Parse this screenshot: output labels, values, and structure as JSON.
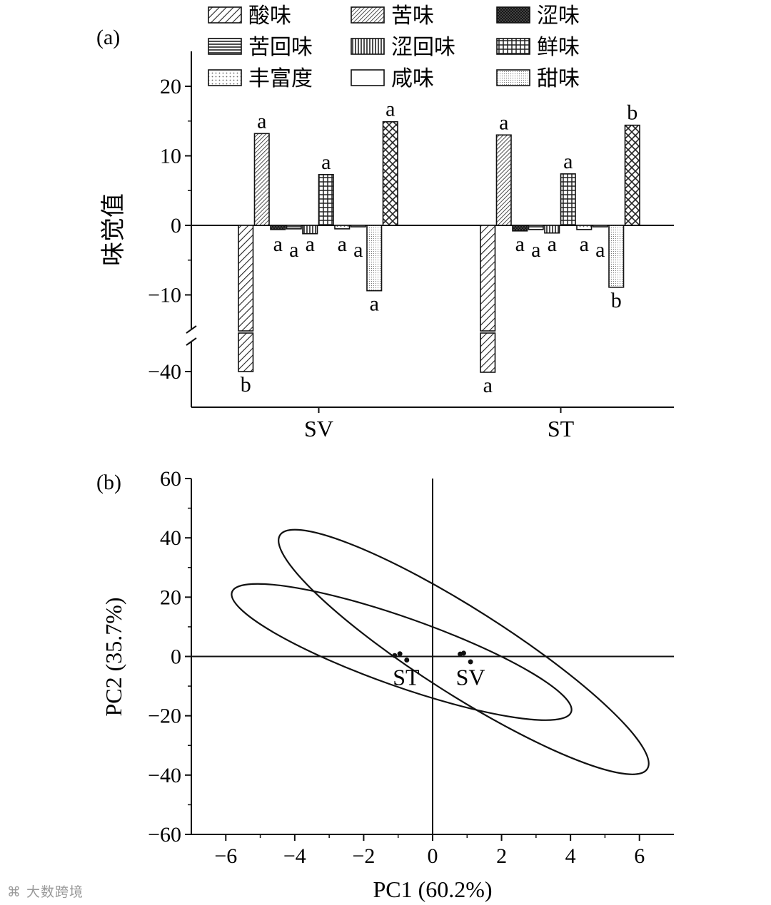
{
  "chart_data": [
    {
      "panel_label": "(a)",
      "type": "bar",
      "ylabel": "味觉值",
      "categories": [
        "SV",
        "ST"
      ],
      "y_ticks": [
        "20",
        "10",
        "0",
        "−10",
        "−40"
      ],
      "axis_break": true,
      "legend_position": "top",
      "series": [
        {
          "name": "酸味",
          "values": [
            -40.0,
            -40.2
          ],
          "labels": [
            "b",
            "a"
          ],
          "pattern": "diag"
        },
        {
          "name": "苦味",
          "values": [
            13.2,
            13.0
          ],
          "labels": [
            "a",
            "a"
          ],
          "pattern": "diag-dense"
        },
        {
          "name": "涩味",
          "values": [
            -0.6,
            -0.8
          ],
          "labels": [
            "a",
            "a"
          ],
          "pattern": "crosshatch"
        },
        {
          "name": "苦回味",
          "values": [
            -0.5,
            -0.6
          ],
          "labels": [
            "a",
            "a"
          ],
          "pattern": "hlines"
        },
        {
          "name": "涩回味",
          "values": [
            -1.2,
            -1.1
          ],
          "labels": [
            "a",
            "a"
          ],
          "pattern": "vlines"
        },
        {
          "name": "鲜味",
          "values": [
            7.3,
            7.4
          ],
          "labels": [
            "a",
            "a"
          ],
          "pattern": "grid"
        },
        {
          "name": "丰富度",
          "values": [
            -0.5,
            -0.6
          ],
          "labels": [
            "a",
            "a"
          ],
          "pattern": "dots"
        },
        {
          "name": "咸味",
          "values": [
            -0.2,
            -0.2
          ],
          "labels": [
            "a",
            "a"
          ],
          "pattern": "plain"
        },
        {
          "name": "甜味",
          "values": [
            -9.4,
            -8.9
          ],
          "labels": [
            "a",
            "b"
          ],
          "pattern": "stipple"
        },
        {
          "name": "",
          "values": [
            14.9,
            14.4
          ],
          "labels": [
            "a",
            "b"
          ],
          "pattern": "zigzag"
        }
      ]
    },
    {
      "panel_label": "(b)",
      "type": "scatter",
      "xlabel": "PC1 (60.2%)",
      "ylabel": "PC2 (35.7%)",
      "xlim": [
        -7,
        7
      ],
      "ylim": [
        -60,
        60
      ],
      "x_ticks": [
        "−6",
        "−4",
        "−2",
        "0",
        "2",
        "4",
        "6"
      ],
      "y_ticks": [
        "60",
        "40",
        "20",
        "0",
        "−20",
        "−40",
        "−60"
      ],
      "groups": [
        {
          "name": "ST",
          "points": [
            [
              -1.1,
              0.3
            ],
            [
              -0.95,
              0.9
            ],
            [
              -0.75,
              -1.2
            ]
          ]
        },
        {
          "name": "SV",
          "points": [
            [
              0.8,
              0.8
            ],
            [
              0.9,
              1.1
            ],
            [
              1.1,
              -1.8
            ]
          ]
        }
      ],
      "ellipses": [
        {
          "group": "ST",
          "center": [
            -0.9,
            0.0
          ]
        },
        {
          "group": "SV",
          "center": [
            1.0,
            0.0
          ]
        }
      ]
    }
  ],
  "watermark": "大数跨境"
}
